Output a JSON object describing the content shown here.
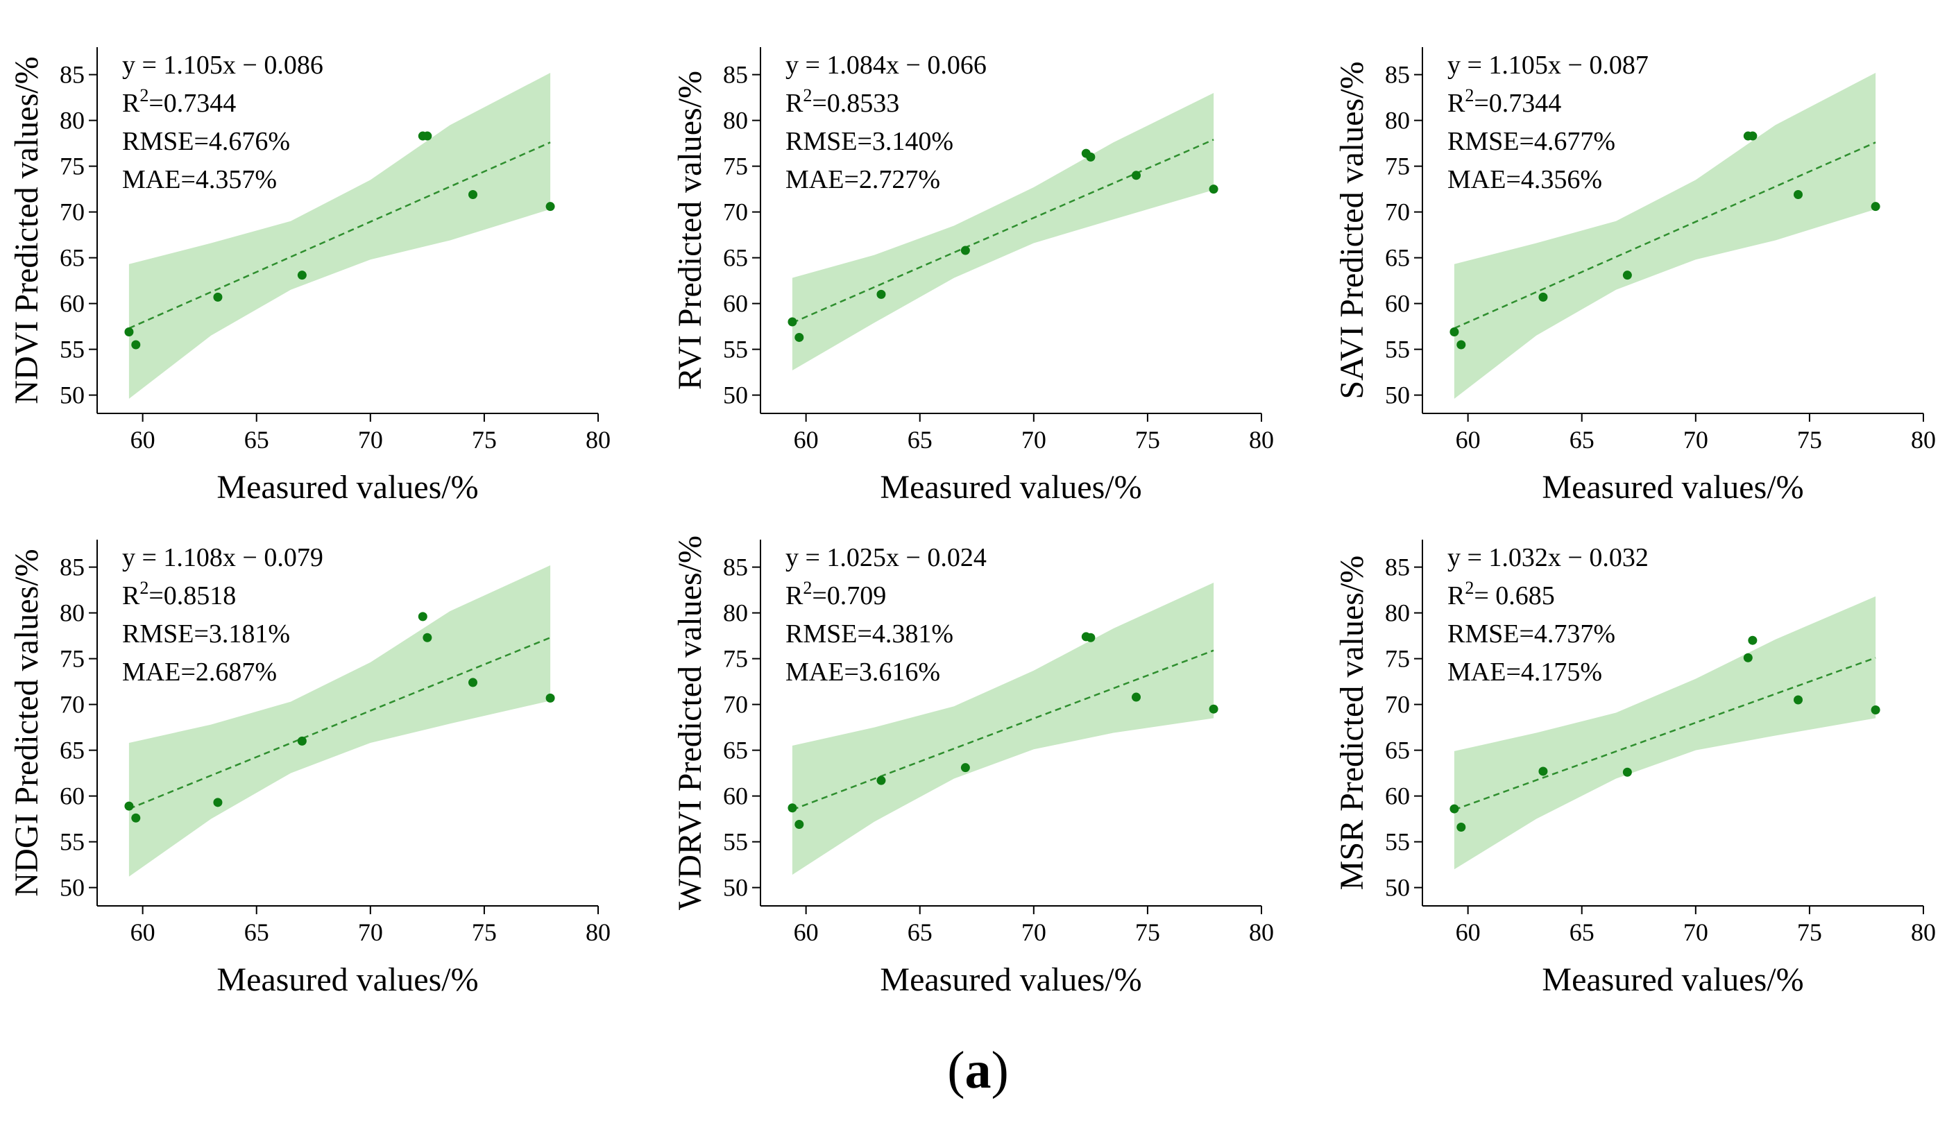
{
  "caption": {
    "open": "(",
    "letter": "a",
    "close": ")"
  },
  "colors": {
    "band": "#c8e8c4",
    "line": "#2f8f2f",
    "point": "#0d7d12",
    "axis": "#000000"
  },
  "chart_data": [
    {
      "type": "scatter",
      "ylabel": "NDVI Predicted values/%",
      "xlabel": "Measured values/%",
      "xlim": [
        58,
        80
      ],
      "ylim": [
        48,
        88
      ],
      "xticks": [
        60,
        65,
        70,
        75,
        80
      ],
      "yticks": [
        50,
        55,
        60,
        65,
        70,
        75,
        80,
        85
      ],
      "stats": {
        "equation": "y = 1.105x − 0.086",
        "r2_prefix": "R",
        "r2_sup": "2",
        "r2_value": "=0.7344",
        "rmse": "RMSE=4.676%",
        "mae": "MAE=4.357%"
      },
      "points": {
        "x": [
          59.4,
          59.7,
          63.3,
          67.0,
          72.3,
          72.5,
          74.5,
          77.9
        ],
        "y": [
          56.9,
          55.5,
          60.7,
          63.1,
          78.3,
          78.3,
          71.9,
          70.6
        ]
      },
      "fit": {
        "x": [
          59.4,
          77.9
        ],
        "y": [
          57.3,
          77.6
        ]
      },
      "band": {
        "x": [
          59.4,
          63,
          66.5,
          70,
          73.5,
          77.9
        ],
        "lower": [
          49.6,
          56.5,
          61.5,
          64.8,
          66.9,
          70.3
        ],
        "upper": [
          64.3,
          66.6,
          69.0,
          73.5,
          79.5,
          85.2
        ]
      }
    },
    {
      "type": "scatter",
      "ylabel": "RVI Predicted values/%",
      "xlabel": "Measured values/%",
      "xlim": [
        58,
        80
      ],
      "ylim": [
        48,
        88
      ],
      "xticks": [
        60,
        65,
        70,
        75,
        80
      ],
      "yticks": [
        50,
        55,
        60,
        65,
        70,
        75,
        80,
        85
      ],
      "stats": {
        "equation": "y = 1.084x − 0.066",
        "r2_prefix": "R",
        "r2_sup": "2",
        "r2_value": "=0.8533",
        "rmse": "RMSE=3.140%",
        "mae": "MAE=2.727%"
      },
      "points": {
        "x": [
          59.4,
          59.7,
          63.3,
          67.0,
          72.3,
          72.5,
          74.5,
          77.9
        ],
        "y": [
          58.0,
          56.3,
          61.0,
          65.8,
          76.4,
          76.0,
          74.0,
          72.5
        ]
      },
      "fit": {
        "x": [
          59.4,
          77.9
        ],
        "y": [
          57.9,
          77.9
        ]
      },
      "band": {
        "x": [
          59.4,
          63,
          66.5,
          70,
          73.5,
          77.9
        ],
        "lower": [
          52.7,
          57.9,
          62.8,
          66.6,
          69.2,
          72.4
        ],
        "upper": [
          62.8,
          65.3,
          68.5,
          72.7,
          77.6,
          83.0
        ]
      }
    },
    {
      "type": "scatter",
      "ylabel": "SAVI Predicted values/%",
      "xlabel": "Measured values/%",
      "xlim": [
        58,
        80
      ],
      "ylim": [
        48,
        88
      ],
      "xticks": [
        60,
        65,
        70,
        75,
        80
      ],
      "yticks": [
        50,
        55,
        60,
        65,
        70,
        75,
        80,
        85
      ],
      "stats": {
        "equation": "y = 1.105x − 0.087",
        "r2_prefix": "R",
        "r2_sup": "2",
        "r2_value": "=0.7344",
        "rmse": "RMSE=4.677%",
        "mae": "MAE=4.356%"
      },
      "points": {
        "x": [
          59.4,
          59.7,
          63.3,
          67.0,
          72.3,
          72.5,
          74.5,
          77.9
        ],
        "y": [
          56.9,
          55.5,
          60.7,
          63.1,
          78.3,
          78.3,
          71.9,
          70.6
        ]
      },
      "fit": {
        "x": [
          59.4,
          77.9
        ],
        "y": [
          57.3,
          77.6
        ]
      },
      "band": {
        "x": [
          59.4,
          63,
          66.5,
          70,
          73.5,
          77.9
        ],
        "lower": [
          49.6,
          56.5,
          61.5,
          64.8,
          66.9,
          70.3
        ],
        "upper": [
          64.3,
          66.6,
          69.0,
          73.5,
          79.5,
          85.2
        ]
      }
    },
    {
      "type": "scatter",
      "ylabel": "NDGI Predicted values/%",
      "xlabel": "Measured values/%",
      "xlim": [
        58,
        80
      ],
      "ylim": [
        48,
        88
      ],
      "xticks": [
        60,
        65,
        70,
        75,
        80
      ],
      "yticks": [
        50,
        55,
        60,
        65,
        70,
        75,
        80,
        85
      ],
      "stats": {
        "equation": "y = 1.108x − 0.079",
        "r2_prefix": "R",
        "r2_sup": "2",
        "r2_value": "=0.8518",
        "rmse": "RMSE=3.181%",
        "mae": "MAE=2.687%"
      },
      "points": {
        "x": [
          59.4,
          59.7,
          63.3,
          67.0,
          72.3,
          72.5,
          74.5,
          77.9
        ],
        "y": [
          58.9,
          57.6,
          59.3,
          66.0,
          79.6,
          77.3,
          72.4,
          70.7
        ]
      },
      "fit": {
        "x": [
          59.4,
          77.9
        ],
        "y": [
          58.6,
          77.3
        ]
      },
      "band": {
        "x": [
          59.4,
          63,
          66.5,
          70,
          73.5,
          77.9
        ],
        "lower": [
          51.2,
          57.5,
          62.5,
          65.8,
          67.9,
          70.4
        ],
        "upper": [
          65.8,
          67.8,
          70.3,
          74.6,
          80.2,
          85.2
        ]
      }
    },
    {
      "type": "scatter",
      "ylabel": "WDRVI Predicted values/%",
      "xlabel": "Measured values/%",
      "xlim": [
        58,
        80
      ],
      "ylim": [
        48,
        88
      ],
      "xticks": [
        60,
        65,
        70,
        75,
        80
      ],
      "yticks": [
        50,
        55,
        60,
        65,
        70,
        75,
        80,
        85
      ],
      "stats": {
        "equation": "y = 1.025x − 0.024",
        "r2_prefix": "R",
        "r2_sup": "2",
        "r2_value": "=0.709",
        "rmse": "RMSE=4.381%",
        "mae": "MAE=3.616%"
      },
      "points": {
        "x": [
          59.4,
          59.7,
          63.3,
          67.0,
          72.3,
          72.5,
          74.5,
          77.9
        ],
        "y": [
          58.7,
          56.9,
          61.7,
          63.1,
          77.4,
          77.3,
          70.8,
          69.5
        ]
      },
      "fit": {
        "x": [
          59.4,
          77.9
        ],
        "y": [
          58.5,
          75.9
        ]
      },
      "band": {
        "x": [
          59.4,
          63,
          66.5,
          70,
          73.5,
          77.9
        ],
        "lower": [
          51.4,
          57.2,
          61.9,
          65.1,
          66.9,
          68.5
        ],
        "upper": [
          65.5,
          67.5,
          69.8,
          73.7,
          78.3,
          83.3
        ]
      }
    },
    {
      "type": "scatter",
      "ylabel": "MSR Predicted values/%",
      "xlabel": "Measured values/%",
      "xlim": [
        58,
        80
      ],
      "ylim": [
        48,
        88
      ],
      "xticks": [
        60,
        65,
        70,
        75,
        80
      ],
      "yticks": [
        50,
        55,
        60,
        65,
        70,
        75,
        80,
        85
      ],
      "stats": {
        "equation": "y = 1.032x − 0.032",
        "r2_prefix": "R",
        "r2_sup": "2",
        "r2_value": "= 0.685",
        "rmse": "RMSE=4.737%",
        "mae": "MAE=4.175%"
      },
      "points": {
        "x": [
          59.4,
          59.7,
          63.3,
          67.0,
          72.3,
          72.5,
          74.5,
          77.9
        ],
        "y": [
          58.6,
          56.6,
          62.7,
          62.6,
          75.1,
          77.0,
          70.5,
          69.4
        ]
      },
      "fit": {
        "x": [
          59.4,
          77.9
        ],
        "y": [
          58.5,
          75.1
        ]
      },
      "band": {
        "x": [
          59.4,
          63,
          66.5,
          70,
          73.5,
          77.9
        ],
        "lower": [
          52.0,
          57.5,
          61.9,
          65.0,
          66.6,
          68.5
        ],
        "upper": [
          64.9,
          66.9,
          69.1,
          72.8,
          77.1,
          81.8
        ]
      }
    }
  ]
}
